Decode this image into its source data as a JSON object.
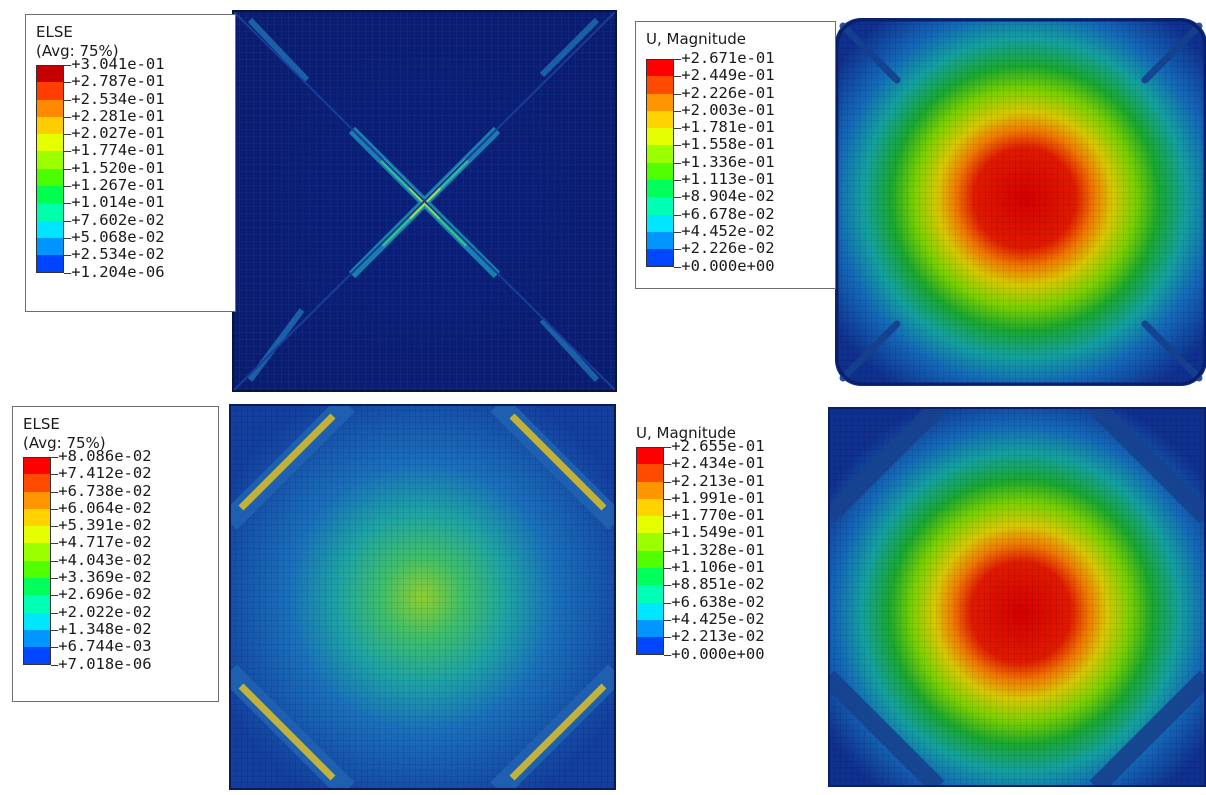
{
  "panels": [
    {
      "id": "top-left",
      "legend": {
        "title_line1": "ELSE",
        "title_line2": "(Avg: 75%)",
        "colors": [
          "#c40000",
          "#ff3d00",
          "#ff8a00",
          "#ffcc00",
          "#e5ff00",
          "#9cff00",
          "#4cff00",
          "#00ff4c",
          "#00ffaa",
          "#00e5ff",
          "#0094ff",
          "#0044ff",
          "#0000e0"
        ],
        "values": [
          "+3.041e-01",
          "+2.787e-01",
          "+2.534e-01",
          "+2.281e-01",
          "+2.027e-01",
          "+1.774e-01",
          "+1.520e-01",
          "+1.267e-01",
          "+1.014e-01",
          "+7.602e-02",
          "+5.068e-02",
          "+2.534e-02",
          "+1.204e-06"
        ]
      }
    },
    {
      "id": "top-right",
      "legend": {
        "title_line1": "U, Magnitude",
        "title_line2": "",
        "colors": [
          "#ff0000",
          "#ff4a00",
          "#ff9600",
          "#ffd200",
          "#e6ff00",
          "#9cff00",
          "#52ff00",
          "#00ff5a",
          "#00ffb4",
          "#00e6ff",
          "#0096ff",
          "#0046ff",
          "#0000e6"
        ],
        "values": [
          "+2.671e-01",
          "+2.449e-01",
          "+2.226e-01",
          "+2.003e-01",
          "+1.781e-01",
          "+1.558e-01",
          "+1.336e-01",
          "+1.113e-01",
          "+8.904e-02",
          "+6.678e-02",
          "+4.452e-02",
          "+2.226e-02",
          "+0.000e+00"
        ]
      }
    },
    {
      "id": "bottom-left",
      "legend": {
        "title_line1": "ELSE",
        "title_line2": "(Avg: 75%)",
        "colors": [
          "#ff0000",
          "#ff4a00",
          "#ff9600",
          "#ffd200",
          "#e6ff00",
          "#9cff00",
          "#52ff00",
          "#00ff5a",
          "#00ffb4",
          "#00e6ff",
          "#0096ff",
          "#0046ff",
          "#0000e6"
        ],
        "values": [
          "+8.086e-02",
          "+7.412e-02",
          "+6.738e-02",
          "+6.064e-02",
          "+5.391e-02",
          "+4.717e-02",
          "+4.043e-02",
          "+3.369e-02",
          "+2.696e-02",
          "+2.022e-02",
          "+1.348e-02",
          "+6.744e-03",
          "+7.018e-06"
        ]
      }
    },
    {
      "id": "bottom-right",
      "legend": {
        "title_line1": "U, Magnitude",
        "title_line2": "",
        "colors": [
          "#ff0000",
          "#ff4a00",
          "#ff9600",
          "#ffd200",
          "#e6ff00",
          "#9cff00",
          "#52ff00",
          "#00ff5a",
          "#00ffb4",
          "#00e6ff",
          "#0096ff",
          "#0046ff",
          "#0000e6"
        ],
        "values": [
          "+2.655e-01",
          "+2.434e-01",
          "+2.213e-01",
          "+1.991e-01",
          "+1.770e-01",
          "+1.549e-01",
          "+1.328e-01",
          "+1.106e-01",
          "+8.851e-02",
          "+6.638e-02",
          "+4.425e-02",
          "+2.213e-02",
          "+0.000e+00"
        ]
      }
    }
  ]
}
